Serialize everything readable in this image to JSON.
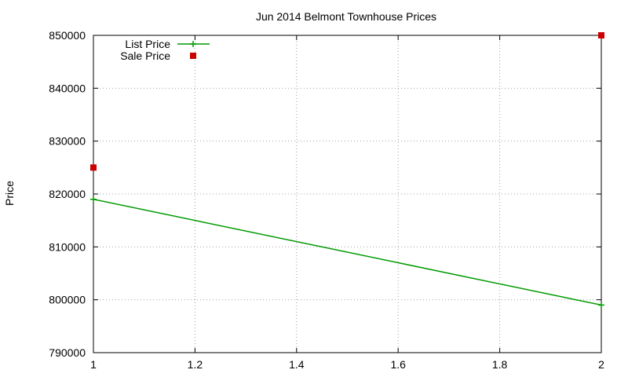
{
  "chart_data": {
    "type": "line",
    "title": "Jun 2014 Belmont Townhouse Prices",
    "xlabel": "",
    "ylabel": "Price",
    "xlim": [
      1,
      2
    ],
    "ylim": [
      790000,
      850000
    ],
    "x_ticks": [
      1,
      1.2,
      1.4,
      1.6,
      1.8,
      2
    ],
    "x_tick_labels": [
      "1",
      "1.2",
      "1.4",
      "1.6",
      "1.8",
      "2"
    ],
    "y_ticks": [
      790000,
      800000,
      810000,
      820000,
      830000,
      840000,
      850000
    ],
    "y_tick_labels": [
      "790000",
      "800000",
      "810000",
      "820000",
      "830000",
      "840000",
      "850000"
    ],
    "grid": true,
    "legend_position": "top-left",
    "series": [
      {
        "name": "List Price",
        "style": "linespoints",
        "color": "#009900",
        "x": [
          1,
          2
        ],
        "y": [
          819000,
          799000
        ]
      },
      {
        "name": "Sale Price",
        "style": "points",
        "color": "#cc0000",
        "x": [
          1,
          2
        ],
        "y": [
          825000,
          850000
        ]
      }
    ]
  }
}
